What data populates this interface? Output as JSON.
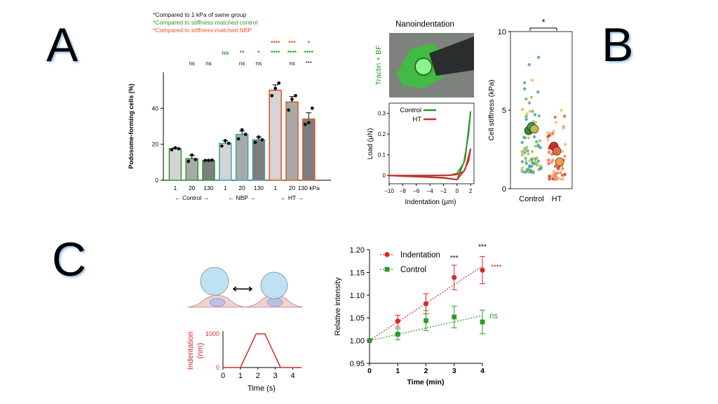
{
  "panels": {
    "a": "A",
    "b": "B",
    "c": "C"
  },
  "legend_notes": [
    {
      "text": "*Compared to 1 kPa of same group",
      "color": "#111111"
    },
    {
      "text": "*Compared to stiffness-matched control",
      "color": "#2a9a2a"
    },
    {
      "text": "*Compared to stiffness-matched NBP",
      "color": "#e8541e"
    }
  ],
  "colors": {
    "green": "#2a9a2a",
    "orange": "#e8541e",
    "red": "#d42a2a",
    "teal": "#3aa5a5",
    "black": "#111111",
    "bar_light": "#d4d4d4",
    "bar_mid": "#a9a9a9",
    "bar_dark": "#7e7e7e"
  },
  "chart_data": [
    {
      "type": "bar",
      "ylabel": "Podosome-forming cells (%)",
      "ylim": [
        0,
        60
      ],
      "yticks": [
        0,
        20,
        40
      ],
      "categories": [
        "1",
        "20",
        "130",
        "1",
        "20",
        "130",
        "1",
        "20",
        "130 kPa"
      ],
      "groups": [
        {
          "name": "Control",
          "label": "← Control →",
          "color": "#2a9a2a"
        },
        {
          "name": "NBP",
          "label": "← NBP →",
          "color": "#3aa5a5"
        },
        {
          "name": "HT",
          "label": "← HT →",
          "color": "#e8541e"
        }
      ],
      "values": [
        17.5,
        12,
        11,
        20.5,
        25.5,
        22.5,
        50,
        43.5,
        34
      ],
      "errors": [
        0.5,
        1.8,
        0.4,
        1.5,
        1.8,
        1.6,
        3,
        3,
        3.5
      ],
      "points": [
        [
          17,
          18,
          17.5
        ],
        [
          10.5,
          14,
          11.5
        ],
        [
          11,
          11,
          11.2
        ],
        [
          19,
          22,
          20.5
        ],
        [
          23,
          28,
          25.5
        ],
        [
          21,
          24,
          22.5
        ],
        [
          47,
          51,
          54
        ],
        [
          39,
          45,
          47
        ],
        [
          31,
          32,
          40
        ]
      ],
      "sig_black": [
        "",
        "ns",
        "ns",
        "",
        "ns",
        "ns",
        "",
        "ns",
        "***"
      ],
      "sig_green": [
        "",
        "",
        "",
        "ns",
        "**",
        "*",
        "****",
        "****",
        "****"
      ],
      "sig_orange": [
        "",
        "",
        "",
        "",
        "",
        "",
        "****",
        "***",
        "*"
      ]
    },
    {
      "type": "line",
      "title": "Nanoindentation",
      "image_label": "Tractin + BF",
      "xlabel": "Indentation (μm)",
      "ylabel": "Load (μN)",
      "xlim": [
        -10,
        2.5
      ],
      "ylim": [
        -0.04,
        0.35
      ],
      "xticks": [
        "−10",
        "−8",
        "−6",
        "−4",
        "−2",
        "0",
        "2"
      ],
      "yticks": [
        "0",
        "0.1",
        "0.2",
        "0.3"
      ],
      "series": [
        {
          "name": "Control",
          "color": "#2a9a2a",
          "x": [
            -10,
            -4,
            -1,
            0,
            1,
            1.7,
            2,
            1.2,
            0,
            -2,
            -10
          ],
          "y": [
            0,
            0,
            0.002,
            0.01,
            0.06,
            0.2,
            0.31,
            0.08,
            -0.02,
            -0.012,
            0
          ]
        },
        {
          "name": "HT",
          "color": "#d42a2a",
          "x": [
            -10,
            -4,
            -1,
            0,
            1,
            1.7,
            2,
            1.2,
            0,
            -2,
            -10
          ],
          "y": [
            0,
            0,
            0.001,
            0.005,
            0.02,
            0.07,
            0.13,
            0.03,
            -0.02,
            -0.01,
            0
          ]
        }
      ]
    },
    {
      "type": "scatter",
      "ylabel": "Cell stiffness  (kPa)",
      "ylim": [
        0,
        10
      ],
      "yticks": [
        "0",
        "5",
        "10"
      ],
      "categories": [
        "Control",
        "HT"
      ],
      "significance": "*",
      "means": [
        {
          "group": "Control",
          "values": [
            3.7,
            3.95,
            3.8
          ]
        },
        {
          "group": "HT",
          "values": [
            2.7,
            2.4,
            1.7
          ]
        }
      ]
    },
    {
      "type": "line",
      "title": "",
      "xlabel": "Time (s)",
      "ylabel": "Indentation\n(nm)",
      "xticks": [
        "0",
        "1",
        "2",
        "3",
        "4"
      ],
      "yticks": [
        "0",
        "1000"
      ],
      "xlim": [
        0,
        4.5
      ],
      "ylim": [
        0,
        1000
      ],
      "series": [
        {
          "name": "",
          "color": "#d42a2a",
          "x": [
            0,
            1,
            1.9,
            2.4,
            3.3,
            4.5
          ],
          "y": [
            0,
            0,
            1000,
            1000,
            0,
            0
          ]
        }
      ]
    },
    {
      "type": "line",
      "xlabel": "Time (min)",
      "ylabel": "Relative intensity",
      "xlim": [
        0,
        4
      ],
      "ylim": [
        0.95,
        1.2
      ],
      "xticks": [
        "0",
        "1",
        "2",
        "3",
        "4"
      ],
      "yticks": [
        "0.95",
        "1.00",
        "1.05",
        "1.10",
        "1.15",
        "1.20"
      ],
      "series": [
        {
          "name": "Indentation",
          "color": "#d42a2a",
          "x": [
            0,
            1,
            2,
            3,
            4
          ],
          "y": [
            1.0,
            1.043,
            1.081,
            1.139,
            1.155
          ],
          "err": [
            0,
            0.013,
            0.022,
            0.027,
            0.03
          ],
          "fit": [
            1.0,
            1.164
          ]
        },
        {
          "name": "Control",
          "color": "#2a9a2a",
          "x": [
            0,
            1,
            2,
            3,
            4
          ],
          "y": [
            1.0,
            1.014,
            1.044,
            1.052,
            1.041
          ],
          "err": [
            0,
            0.012,
            0.022,
            0.024,
            0.026
          ],
          "fit": [
            1.0,
            1.055
          ]
        }
      ],
      "point_labels": [
        "***",
        "***"
      ],
      "end_labels": [
        "****",
        "ns"
      ]
    }
  ]
}
